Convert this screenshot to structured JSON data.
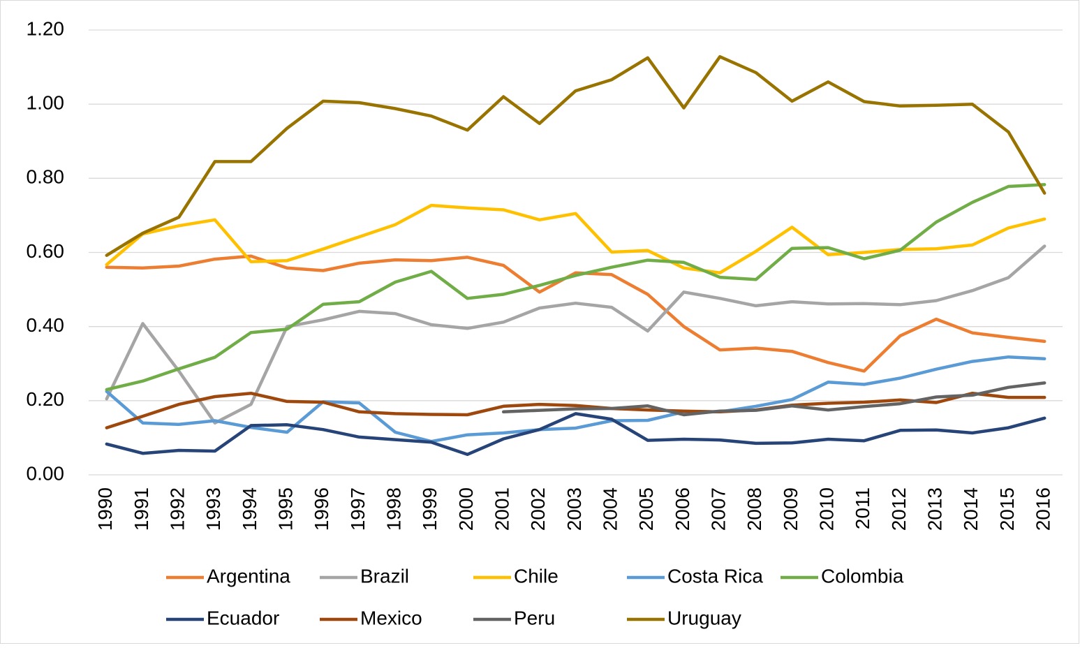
{
  "chart_data": {
    "type": "line",
    "categories": [
      "1990",
      "1991",
      "1992",
      "1993",
      "1994",
      "1995",
      "1996",
      "1997",
      "1998",
      "1999",
      "2000",
      "2001",
      "2002",
      "2003",
      "2004",
      "2005",
      "2006",
      "2007",
      "2008",
      "2009",
      "2010",
      "2011",
      "2012",
      "2013",
      "2014",
      "2015",
      "2016"
    ],
    "series": [
      {
        "name": "Argentina",
        "color": "#ed7d31",
        "values": [
          0.56,
          0.558,
          0.563,
          0.582,
          0.59,
          0.558,
          0.551,
          0.571,
          0.58,
          0.578,
          0.587,
          0.565,
          0.493,
          0.545,
          0.54,
          0.487,
          0.4,
          0.337,
          0.342,
          0.333,
          0.303,
          0.28,
          0.375,
          0.42,
          0.383,
          0.371,
          0.36
        ]
      },
      {
        "name": "Brazil",
        "color": "#a5a5a5",
        "values": [
          0.205,
          0.408,
          0.28,
          0.14,
          0.19,
          0.4,
          0.418,
          0.441,
          0.435,
          0.405,
          0.395,
          0.412,
          0.45,
          0.463,
          0.452,
          0.388,
          0.493,
          0.476,
          0.456,
          0.467,
          0.461,
          0.462,
          0.459,
          0.47,
          0.497,
          0.532,
          0.617
        ]
      },
      {
        "name": "Chile",
        "color": "#ffc000",
        "values": [
          0.567,
          0.65,
          0.672,
          0.688,
          0.575,
          0.578,
          0.609,
          0.642,
          0.675,
          0.727,
          0.72,
          0.715,
          0.688,
          0.705,
          0.601,
          0.605,
          0.558,
          0.545,
          0.603,
          0.668,
          0.594,
          0.6,
          0.608,
          0.61,
          0.62,
          0.666,
          0.69
        ]
      },
      {
        "name": "Costa Rica",
        "color": "#5b9bd5",
        "values": [
          0.225,
          0.14,
          0.136,
          0.146,
          0.128,
          0.115,
          0.197,
          0.194,
          0.115,
          0.09,
          0.108,
          0.113,
          0.122,
          0.126,
          0.146,
          0.147,
          0.17,
          0.17,
          0.185,
          0.203,
          0.25,
          0.244,
          0.261,
          0.285,
          0.306,
          0.318,
          0.313
        ]
      },
      {
        "name": "Colombia",
        "color": "#70ad47",
        "values": [
          0.23,
          0.253,
          0.286,
          0.317,
          0.384,
          0.393,
          0.46,
          0.467,
          0.52,
          0.549,
          0.476,
          0.487,
          0.511,
          0.538,
          0.56,
          0.579,
          0.573,
          0.533,
          0.527,
          0.611,
          0.613,
          0.583,
          0.606,
          0.682,
          0.735,
          0.778,
          0.783
        ]
      },
      {
        "name": "Ecuador",
        "color": "#264478",
        "values": [
          0.083,
          0.058,
          0.066,
          0.064,
          0.133,
          0.135,
          0.122,
          0.102,
          0.095,
          0.088,
          0.055,
          0.097,
          0.122,
          0.165,
          0.15,
          0.093,
          0.096,
          0.094,
          0.085,
          0.086,
          0.096,
          0.092,
          0.12,
          0.121,
          0.113,
          0.127,
          0.153
        ]
      },
      {
        "name": "Mexico",
        "color": "#9e480e",
        "values": [
          0.127,
          0.158,
          0.19,
          0.211,
          0.22,
          0.198,
          0.196,
          0.17,
          0.165,
          0.163,
          0.162,
          0.185,
          0.19,
          0.187,
          0.179,
          0.175,
          0.172,
          0.17,
          0.175,
          0.188,
          0.193,
          0.196,
          0.202,
          0.195,
          0.22,
          0.209,
          0.209
        ]
      },
      {
        "name": "Peru",
        "color": "#636363",
        "values": [
          null,
          null,
          null,
          null,
          null,
          null,
          null,
          null,
          null,
          null,
          null,
          0.17,
          0.174,
          0.178,
          0.179,
          0.186,
          0.162,
          0.172,
          0.174,
          0.186,
          0.175,
          0.184,
          0.192,
          0.21,
          0.215,
          0.236,
          0.248
        ]
      },
      {
        "name": "Uruguay",
        "color": "#997300",
        "values": [
          0.592,
          0.652,
          0.695,
          0.845,
          0.845,
          0.935,
          1.008,
          1.004,
          0.988,
          0.968,
          0.93,
          1.02,
          0.948,
          1.036,
          1.066,
          1.125,
          0.99,
          1.128,
          1.085,
          1.008,
          1.06,
          1.007,
          0.995,
          0.997,
          1.0,
          0.925,
          0.76
        ]
      }
    ],
    "ylim": [
      0,
      1.2
    ],
    "yticks": [
      {
        "value": 0,
        "label": "0.00"
      },
      {
        "value": 0.2,
        "label": "0.20"
      },
      {
        "value": 0.4,
        "label": "0.40"
      },
      {
        "value": 0.6,
        "label": "0.60"
      },
      {
        "value": 0.8,
        "label": "0.80"
      },
      {
        "value": 1.0,
        "label": "1.00"
      },
      {
        "value": 1.2,
        "label": "1.20"
      }
    ],
    "grid": true,
    "legend": "bottom"
  }
}
